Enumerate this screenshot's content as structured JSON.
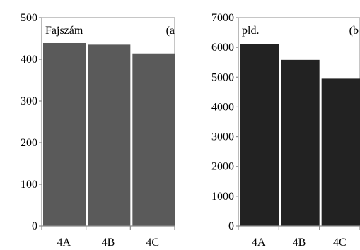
{
  "chart_data": [
    {
      "type": "bar",
      "panel_tag": "(a",
      "title": "Fajszám",
      "categories": [
        "4A",
        "4B",
        "4C"
      ],
      "values": [
        439,
        435,
        414
      ],
      "ylim": [
        0,
        500
      ],
      "yticks": [
        "0",
        "100",
        "200",
        "300",
        "400",
        "500"
      ],
      "grid": false,
      "colors": {
        "bar": "#5a5a5a"
      }
    },
    {
      "type": "bar",
      "panel_tag": "(b",
      "title": "pld.",
      "categories": [
        "4A",
        "4B",
        "4C"
      ],
      "values": [
        6100,
        5580,
        4950
      ],
      "ylim": [
        0,
        7000
      ],
      "yticks": [
        "0",
        "1000",
        "2000",
        "3000",
        "4000",
        "5000",
        "6000",
        "7000"
      ],
      "grid": false,
      "colors": {
        "bar": "#222222"
      }
    }
  ]
}
